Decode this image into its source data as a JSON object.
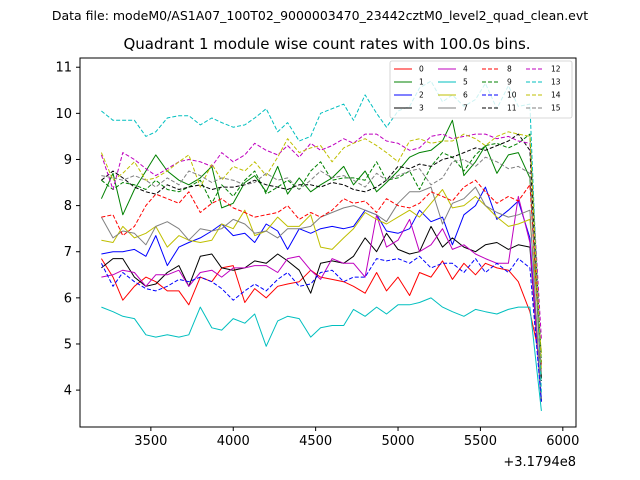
{
  "figure": {
    "suptitle": "Data file: modeM0/AS1A07_100T02_9000003470_23442cztM0_level2_quad_clean.evt",
    "title": "Quadrant 1 module wise count rates with 100.0s bins.",
    "x_offset_label": "+3.1794e8"
  },
  "chart_data": {
    "type": "line",
    "title": "Quadrant 1 module wise count rates with 100.0s bins.",
    "xlabel": "",
    "ylabel": "",
    "x_offset": "+3.1794e8",
    "xlim": [
      3070,
      6080
    ],
    "ylim": [
      3.2,
      11.2
    ],
    "xticks": [
      3500,
      4000,
      4500,
      5000,
      5500,
      6000
    ],
    "yticks": [
      4,
      5,
      6,
      7,
      8,
      9,
      10,
      11
    ],
    "legend_position": "top-right",
    "x": [
      3200,
      3270,
      3330,
      3400,
      3470,
      3530,
      3600,
      3670,
      3730,
      3800,
      3870,
      3930,
      4000,
      4070,
      4130,
      4200,
      4270,
      4330,
      4400,
      4470,
      4530,
      4600,
      4670,
      4730,
      4800,
      4870,
      4930,
      5000,
      5070,
      5130,
      5200,
      5270,
      5330,
      5400,
      5470,
      5530,
      5600,
      5670,
      5730,
      5800,
      5870
    ],
    "series": [
      {
        "name": "0",
        "color": "#ff0000",
        "dash": "solid",
        "values": [
          6.85,
          6.45,
          5.95,
          6.25,
          6.45,
          6.35,
          6.15,
          6.15,
          5.85,
          6.45,
          6.35,
          6.65,
          6.7,
          5.9,
          6.2,
          6.0,
          6.25,
          6.3,
          6.35,
          6.6,
          6.45,
          6.4,
          6.35,
          6.25,
          6.1,
          6.55,
          6.15,
          6.45,
          6.05,
          6.55,
          6.45,
          6.8,
          6.4,
          6.75,
          6.5,
          6.75,
          6.65,
          6.6,
          6.35,
          5.7,
          4.55
        ]
      },
      {
        "name": "1",
        "color": "#008000",
        "dash": "solid",
        "values": [
          8.15,
          8.7,
          7.8,
          8.35,
          8.75,
          9.1,
          8.75,
          8.55,
          8.45,
          8.6,
          8.85,
          7.95,
          8.05,
          8.5,
          8.65,
          8.3,
          8.85,
          8.25,
          8.6,
          8.3,
          8.45,
          8.6,
          8.85,
          8.45,
          8.75,
          8.3,
          8.5,
          8.75,
          9.05,
          9.15,
          9.2,
          9.4,
          9.85,
          8.65,
          8.95,
          9.3,
          8.7,
          9.1,
          9.15,
          8.6,
          4.25
        ]
      },
      {
        "name": "2",
        "color": "#0000ff",
        "dash": "solid",
        "values": [
          6.95,
          7.0,
          7.0,
          7.05,
          6.9,
          7.35,
          6.7,
          7.1,
          7.2,
          7.3,
          7.45,
          7.6,
          7.35,
          7.4,
          7.2,
          7.6,
          7.45,
          7.05,
          7.5,
          7.4,
          7.5,
          7.55,
          7.5,
          7.55,
          7.9,
          7.8,
          7.45,
          7.4,
          7.5,
          7.9,
          7.65,
          7.75,
          7.15,
          7.8,
          8.0,
          8.4,
          7.7,
          7.9,
          8.1,
          7.3,
          3.8
        ]
      },
      {
        "name": "3",
        "color": "#000000",
        "dash": "solid",
        "values": [
          6.65,
          6.85,
          6.85,
          6.45,
          6.25,
          6.3,
          6.55,
          6.7,
          6.25,
          6.9,
          6.95,
          6.65,
          6.6,
          6.65,
          6.8,
          6.75,
          6.95,
          6.8,
          6.6,
          6.1,
          6.75,
          6.8,
          6.75,
          6.9,
          7.3,
          7.0,
          7.4,
          7.05,
          6.95,
          7.0,
          7.55,
          7.1,
          7.3,
          7.1,
          7.0,
          7.15,
          7.2,
          7.05,
          7.15,
          7.1,
          3.75
        ]
      },
      {
        "name": "4",
        "color": "#bf00bf",
        "dash": "solid",
        "values": [
          6.45,
          6.5,
          6.6,
          6.55,
          6.25,
          6.5,
          6.5,
          6.6,
          6.25,
          6.55,
          6.6,
          6.45,
          6.65,
          6.65,
          6.7,
          6.7,
          6.55,
          6.85,
          6.9,
          6.6,
          6.4,
          6.85,
          6.75,
          6.75,
          6.45,
          7.8,
          7.1,
          7.25,
          7.7,
          7.0,
          7.15,
          7.5,
          7.05,
          7.15,
          6.95,
          6.85,
          6.75,
          6.75,
          8.2,
          7.2,
          3.75
        ]
      },
      {
        "name": "5",
        "color": "#00bfbf",
        "dash": "solid",
        "values": [
          5.8,
          5.7,
          5.6,
          5.55,
          5.2,
          5.15,
          5.2,
          5.15,
          5.2,
          5.8,
          5.35,
          5.3,
          5.55,
          5.45,
          5.65,
          4.95,
          5.5,
          5.6,
          5.55,
          5.15,
          5.35,
          5.4,
          5.4,
          5.75,
          5.6,
          5.8,
          5.65,
          5.85,
          5.85,
          5.9,
          6.0,
          5.8,
          5.7,
          5.6,
          5.75,
          5.7,
          5.65,
          5.75,
          5.8,
          5.8,
          3.55
        ]
      },
      {
        "name": "6",
        "color": "#bfbf00",
        "dash": "solid",
        "values": [
          7.25,
          7.2,
          7.55,
          7.3,
          7.4,
          7.55,
          7.1,
          7.35,
          7.25,
          7.2,
          7.25,
          7.6,
          7.5,
          7.9,
          7.35,
          7.45,
          7.75,
          7.55,
          7.55,
          7.8,
          7.1,
          7.05,
          7.3,
          7.5,
          7.85,
          7.7,
          7.6,
          7.75,
          7.9,
          7.75,
          8.05,
          8.35,
          7.95,
          8.0,
          8.2,
          8.0,
          7.75,
          7.55,
          7.6,
          7.7,
          4.8
        ]
      },
      {
        "name": "7",
        "color": "#808080",
        "dash": "solid",
        "values": [
          7.75,
          7.3,
          7.45,
          7.4,
          7.15,
          7.55,
          7.65,
          7.5,
          7.25,
          7.5,
          7.45,
          7.5,
          7.7,
          7.6,
          7.4,
          7.45,
          7.3,
          7.5,
          7.5,
          7.55,
          7.75,
          7.85,
          7.95,
          8.0,
          7.9,
          7.8,
          7.65,
          8.05,
          8.3,
          8.3,
          8.4,
          7.6,
          8.05,
          8.15,
          8.4,
          8.0,
          7.85,
          7.75,
          7.8,
          7.9,
          3.75
        ]
      },
      {
        "name": "8",
        "color": "#ff0000",
        "dash": "dashed",
        "values": [
          7.75,
          7.8,
          7.35,
          7.55,
          8.0,
          8.25,
          8.15,
          8.05,
          8.3,
          7.85,
          8.05,
          8.15,
          7.95,
          7.85,
          7.75,
          7.8,
          7.85,
          8.0,
          7.7,
          7.85,
          7.75,
          7.9,
          8.15,
          8.05,
          8.1,
          7.85,
          8.15,
          8.0,
          7.95,
          8.05,
          8.3,
          8.2,
          8.1,
          8.4,
          8.55,
          8.3,
          8.05,
          8.2,
          8.1,
          8.45,
          4.55
        ]
      },
      {
        "name": "9",
        "color": "#008000",
        "dash": "dashed",
        "values": [
          8.55,
          8.35,
          8.5,
          8.45,
          8.35,
          8.55,
          8.35,
          8.3,
          8.4,
          8.55,
          8.05,
          8.45,
          8.2,
          8.55,
          8.75,
          8.25,
          8.4,
          8.55,
          8.35,
          8.75,
          8.95,
          8.55,
          8.6,
          8.6,
          8.55,
          8.95,
          8.55,
          8.6,
          8.75,
          8.35,
          8.85,
          9.15,
          9.05,
          8.75,
          9.1,
          9.3,
          9.35,
          9.25,
          9.35,
          9.55,
          4.6
        ]
      },
      {
        "name": "10",
        "color": "#0000ff",
        "dash": "dashed",
        "values": [
          6.75,
          6.25,
          6.55,
          6.35,
          6.2,
          6.15,
          6.25,
          6.4,
          6.35,
          6.45,
          6.35,
          6.2,
          5.95,
          6.15,
          6.3,
          6.15,
          6.4,
          6.55,
          6.25,
          6.3,
          6.55,
          6.6,
          6.35,
          6.45,
          6.45,
          6.85,
          6.8,
          6.85,
          6.75,
          6.9,
          6.65,
          6.75,
          6.75,
          6.55,
          6.85,
          6.55,
          6.75,
          6.55,
          6.85,
          6.65,
          3.75
        ]
      },
      {
        "name": "11",
        "color": "#000000",
        "dash": "dashed",
        "values": [
          8.55,
          8.75,
          8.6,
          8.4,
          8.3,
          8.25,
          8.45,
          8.35,
          8.4,
          8.45,
          8.35,
          8.4,
          8.4,
          8.45,
          8.55,
          8.45,
          8.4,
          8.35,
          8.45,
          8.45,
          8.4,
          8.5,
          8.45,
          8.35,
          8.3,
          8.4,
          8.55,
          8.85,
          8.8,
          8.9,
          8.85,
          9.0,
          9.05,
          9.15,
          9.25,
          9.2,
          9.3,
          9.4,
          9.55,
          9.2,
          4.2
        ]
      },
      {
        "name": "12",
        "color": "#bf00bf",
        "dash": "dashed",
        "values": [
          9.1,
          8.35,
          9.15,
          9.0,
          8.8,
          8.65,
          8.8,
          8.95,
          9.0,
          8.95,
          8.85,
          9.15,
          8.95,
          9.1,
          9.35,
          9.2,
          9.1,
          9.3,
          9.05,
          9.35,
          9.2,
          9.3,
          9.45,
          9.35,
          9.55,
          9.55,
          9.4,
          9.35,
          9.2,
          9.25,
          9.5,
          9.55,
          9.45,
          9.5,
          9.55,
          9.55,
          9.45,
          9.5,
          9.4,
          9.35,
          5.1
        ]
      },
      {
        "name": "13",
        "color": "#00bfbf",
        "dash": "dashed",
        "values": [
          10.05,
          9.85,
          9.85,
          9.85,
          9.5,
          9.6,
          9.9,
          9.95,
          9.95,
          9.75,
          9.9,
          9.8,
          9.7,
          9.75,
          9.9,
          10.1,
          9.6,
          9.8,
          9.4,
          9.5,
          10.0,
          10.1,
          10.2,
          9.85,
          10.4,
          10.0,
          9.7,
          10.05,
          10.15,
          10.55,
          10.7,
          10.25,
          10.4,
          10.15,
          10.3,
          10.65,
          10.1,
          10.6,
          10.15,
          10.2,
          3.95
        ]
      },
      {
        "name": "14",
        "color": "#bfbf00",
        "dash": "dashed",
        "values": [
          9.15,
          8.55,
          8.7,
          8.95,
          8.55,
          8.6,
          8.75,
          8.95,
          9.1,
          8.4,
          8.9,
          8.55,
          8.85,
          8.75,
          8.95,
          8.65,
          9.05,
          9.45,
          9.15,
          9.25,
          9.3,
          8.95,
          9.25,
          9.35,
          9.45,
          9.3,
          9.15,
          8.95,
          9.4,
          9.45,
          9.35,
          9.4,
          9.4,
          9.55,
          9.45,
          9.3,
          9.5,
          9.6,
          9.55,
          9.5,
          4.45
        ]
      },
      {
        "name": "15",
        "color": "#808080",
        "dash": "dashed",
        "values": [
          8.65,
          8.6,
          8.55,
          8.65,
          8.55,
          8.4,
          8.6,
          8.45,
          8.75,
          8.65,
          8.5,
          8.6,
          8.55,
          8.45,
          8.5,
          8.7,
          8.55,
          8.6,
          8.35,
          8.55,
          8.75,
          8.6,
          8.65,
          8.55,
          8.4,
          8.7,
          8.55,
          8.65,
          8.75,
          8.8,
          8.45,
          8.6,
          8.95,
          9.0,
          8.85,
          9.05,
          8.95,
          8.8,
          8.85,
          8.7,
          4.35
        ]
      }
    ]
  }
}
